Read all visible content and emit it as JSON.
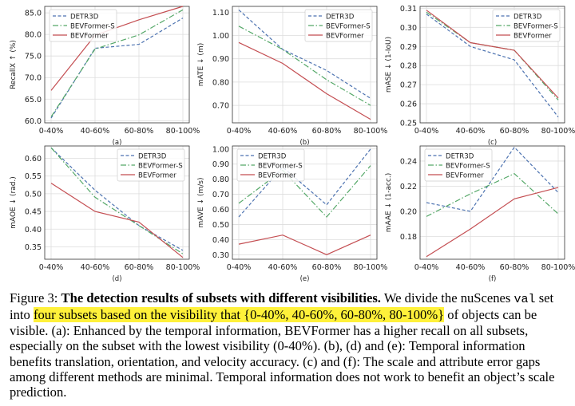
{
  "chart_data": [
    {
      "type": "line",
      "panel": "(a)",
      "ylabel": "RecallX ↑ (%)",
      "categories": [
        "0-40%",
        "40-60%",
        "60-80%",
        "80-100%"
      ],
      "ylim": [
        59.5,
        86.5
      ],
      "yticks": [
        60.0,
        65.0,
        70.0,
        75.0,
        80.0,
        85.0
      ],
      "ytick_labels": [
        "60.0",
        "65.0",
        "70.0",
        "75.0",
        "80.0",
        "85.0"
      ],
      "legend": "top-left",
      "series": [
        {
          "name": "DETR3D",
          "values": [
            60.6,
            76.8,
            77.7,
            83.8
          ]
        },
        {
          "name": "BEVFormer-S",
          "values": [
            60.9,
            76.6,
            79.9,
            85.7
          ]
        },
        {
          "name": "BEVFormer",
          "values": [
            67.0,
            79.8,
            83.4,
            86.5
          ]
        }
      ]
    },
    {
      "type": "line",
      "panel": "(b)",
      "ylabel": "mATE ↓ (m)",
      "categories": [
        "0-40%",
        "40-60%",
        "60-80%",
        "80-100%"
      ],
      "ylim": [
        0.625,
        1.125
      ],
      "yticks": [
        0.7,
        0.8,
        0.9,
        1.0,
        1.1
      ],
      "ytick_labels": [
        "0.70",
        "0.80",
        "0.90",
        "1.00",
        "1.10"
      ],
      "legend": "top-right",
      "series": [
        {
          "name": "DETR3D",
          "values": [
            1.11,
            0.94,
            0.85,
            0.73
          ]
        },
        {
          "name": "BEVFormer-S",
          "values": [
            1.04,
            0.94,
            0.81,
            0.7
          ]
        },
        {
          "name": "BEVFormer",
          "values": [
            0.97,
            0.88,
            0.75,
            0.64
          ]
        }
      ]
    },
    {
      "type": "line",
      "panel": "(c)",
      "ylabel": "mASE ↓ (1-IoU)",
      "categories": [
        "0-40%",
        "40-60%",
        "60-80%",
        "80-100%"
      ],
      "ylim": [
        0.25,
        0.311
      ],
      "yticks": [
        0.25,
        0.26,
        0.27,
        0.28,
        0.29,
        0.3,
        0.31
      ],
      "ytick_labels": [
        "0.25",
        "0.26",
        "0.27",
        "0.28",
        "0.29",
        "0.30",
        "0.31"
      ],
      "legend": "top-right",
      "series": [
        {
          "name": "DETR3D",
          "values": [
            0.307,
            0.29,
            0.283,
            0.253
          ]
        },
        {
          "name": "BEVFormer-S",
          "values": [
            0.308,
            0.292,
            0.288,
            0.262
          ]
        },
        {
          "name": "BEVFormer",
          "values": [
            0.309,
            0.292,
            0.288,
            0.263
          ]
        }
      ]
    },
    {
      "type": "line",
      "panel": "(d)",
      "ylabel": "mAOE ↓ (rad.)",
      "categories": [
        "0-40%",
        "40-60%",
        "60-80%",
        "80-100%"
      ],
      "ylim": [
        0.315,
        0.635
      ],
      "yticks": [
        0.35,
        0.4,
        0.45,
        0.5,
        0.55,
        0.6
      ],
      "ytick_labels": [
        "0.35",
        "0.40",
        "0.45",
        "0.50",
        "0.55",
        "0.60"
      ],
      "legend": "top-right",
      "series": [
        {
          "name": "DETR3D",
          "values": [
            0.63,
            0.51,
            0.41,
            0.34
          ]
        },
        {
          "name": "BEVFormer-S",
          "values": [
            0.63,
            0.49,
            0.41,
            0.33
          ]
        },
        {
          "name": "BEVFormer",
          "values": [
            0.53,
            0.45,
            0.42,
            0.32
          ]
        }
      ]
    },
    {
      "type": "line",
      "panel": "(e)",
      "ylabel": "mAVE ↓ (m/s)",
      "categories": [
        "0-40%",
        "40-60%",
        "60-80%",
        "80-100%"
      ],
      "ylim": [
        0.27,
        1.02
      ],
      "yticks": [
        0.3,
        0.4,
        0.5,
        0.6,
        0.7,
        0.8,
        0.9,
        1.0
      ],
      "ytick_labels": [
        "0.30",
        "0.40",
        "0.50",
        "0.60",
        "0.70",
        "0.80",
        "0.90",
        "1.00"
      ],
      "legend": "top-left",
      "series": [
        {
          "name": "DETR3D",
          "values": [
            0.55,
            0.88,
            0.63,
            1.0
          ]
        },
        {
          "name": "BEVFormer-S",
          "values": [
            0.64,
            0.86,
            0.55,
            0.89
          ]
        },
        {
          "name": "BEVFormer",
          "values": [
            0.37,
            0.43,
            0.3,
            0.43
          ]
        }
      ]
    },
    {
      "type": "line",
      "panel": "(f)",
      "ylabel": "mAAE ↓ (1-acc.)",
      "categories": [
        "0-40%",
        "40-60%",
        "60-80%",
        "80-100%"
      ],
      "ylim": [
        0.162,
        0.252
      ],
      "yticks": [
        0.18,
        0.2,
        0.22,
        0.24
      ],
      "ytick_labels": [
        "0.18",
        "0.20",
        "0.22",
        "0.24"
      ],
      "legend": "top-left",
      "series": [
        {
          "name": "DETR3D",
          "values": [
            0.207,
            0.2,
            0.251,
            0.215
          ]
        },
        {
          "name": "BEVFormer-S",
          "values": [
            0.196,
            0.214,
            0.23,
            0.198
          ]
        },
        {
          "name": "BEVFormer",
          "values": [
            0.164,
            0.186,
            0.21,
            0.219
          ]
        }
      ]
    }
  ],
  "series_style": {
    "DETR3D": {
      "color": "#4c72b0",
      "dash": "4,2.5"
    },
    "BEVFormer-S": {
      "color": "#55a868",
      "dash": "7,2.5,1.5,2.5"
    },
    "BEVFormer": {
      "color": "#c44e52",
      "dash": ""
    }
  },
  "caption": {
    "label": "Figure 3:",
    "bold": "The detection results of subsets with different visibilities.",
    "t1": "We divide the nuScenes",
    "code": "val",
    "t2": "set into",
    "highlight": "four subsets based on the visibility that {0-40%, 40-60%, 60-80%, 80-100%}",
    "t3": "of objects can be visible. (a): Enhanced by the temporal information, BEVFormer has a higher recall on all subsets, especially on the subset with the lowest visibility (0-40%). (b), (d) and (e): Temporal information benefits translation, orientation, and velocity accuracy. (c) and (f): The scale and attribute error gaps among different methods are minimal. Temporal information does not work to benefit an object’s scale prediction."
  }
}
